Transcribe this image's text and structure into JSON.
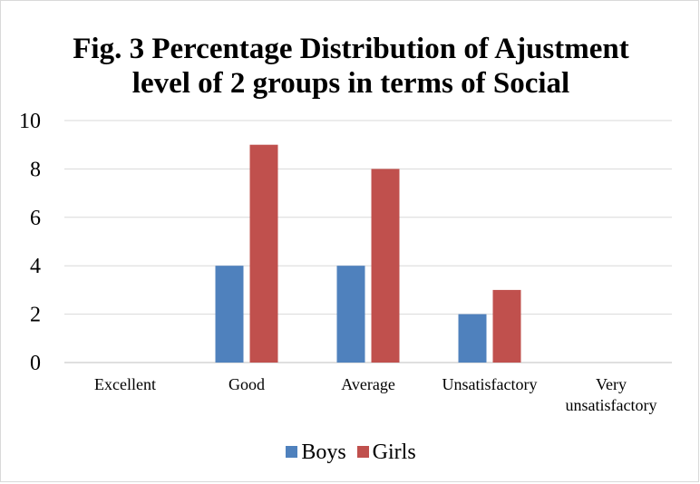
{
  "chart_data": {
    "type": "bar",
    "title_lines": [
      "Fig. 3  Percentage Distribution of Ajustment",
      "level of 2 groups in terms of Social"
    ],
    "categories": [
      "Excellent",
      "Good",
      "Average",
      "Unsatisfactory",
      "Very unsatisfactory"
    ],
    "series": [
      {
        "name": "Boys",
        "color": "#4f81bd",
        "values": [
          0,
          4,
          4,
          2,
          0
        ]
      },
      {
        "name": "Girls",
        "color": "#c0504d",
        "values": [
          0,
          9,
          8,
          3,
          0
        ]
      }
    ],
    "ylim": [
      0,
      10
    ],
    "yticks": [
      0,
      2,
      4,
      6,
      8,
      10
    ],
    "grid": true,
    "legend_position": "bottom"
  }
}
